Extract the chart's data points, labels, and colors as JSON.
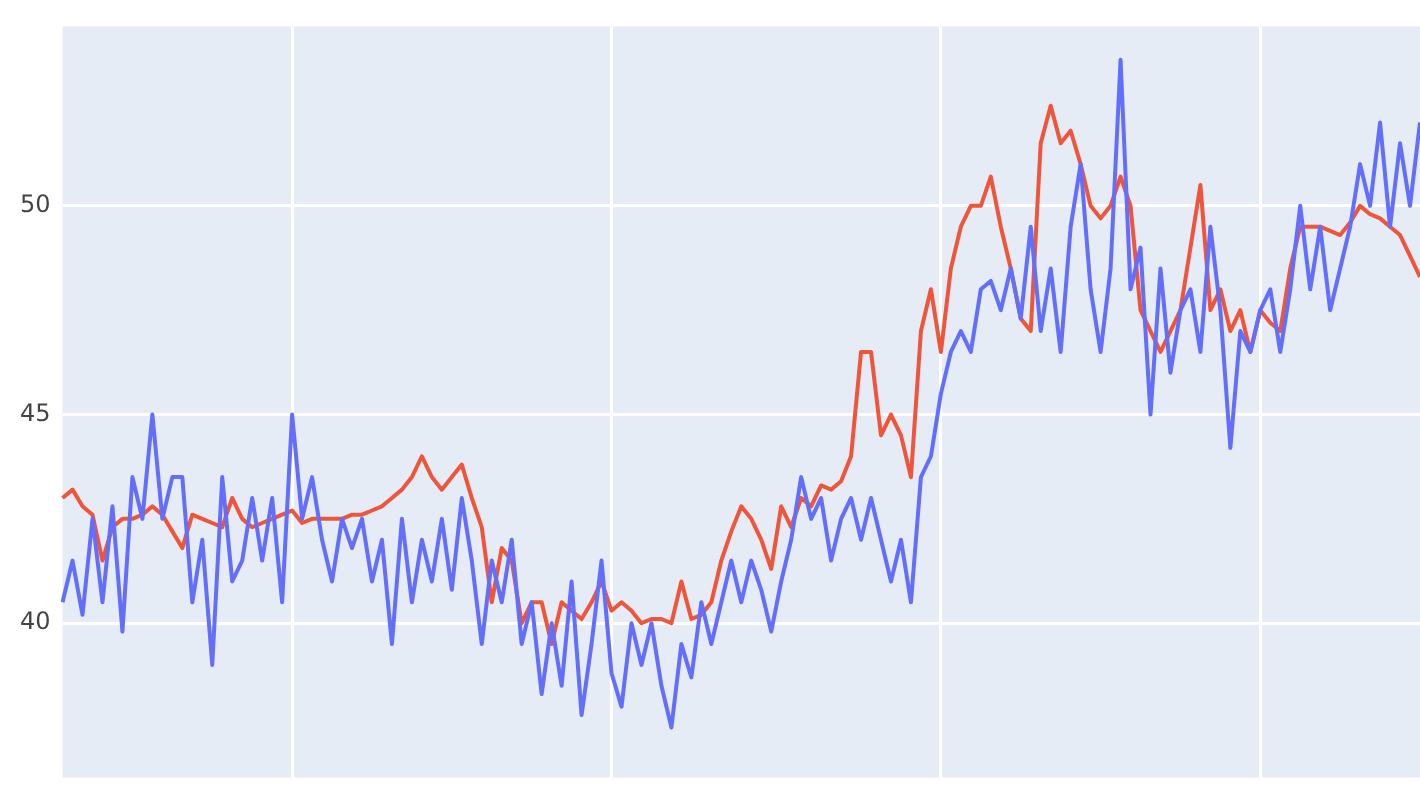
{
  "chart_data": {
    "type": "line",
    "categories": [
      null,
      null,
      null,
      null,
      null,
      null,
      null,
      null,
      null,
      null,
      null,
      null,
      null,
      null,
      null,
      null,
      null,
      null,
      null,
      null,
      null,
      null,
      null,
      null,
      null,
      null,
      null,
      null,
      null,
      null,
      null,
      null,
      null,
      null,
      null,
      null,
      null,
      null,
      null,
      null,
      null,
      null,
      null,
      null,
      null,
      null,
      null,
      null,
      null,
      null,
      null,
      null,
      null,
      null,
      null,
      null,
      null,
      null,
      null,
      null,
      null,
      null,
      null,
      null,
      null,
      null,
      null,
      null,
      null,
      null,
      null,
      null,
      null,
      null,
      null,
      null,
      null,
      null,
      null,
      null,
      null,
      null,
      null,
      null,
      null,
      null,
      null,
      null,
      null,
      null,
      null,
      null,
      null,
      null,
      null,
      null,
      null,
      null,
      null,
      null,
      null,
      null,
      null,
      null,
      null,
      null,
      null,
      null,
      null,
      null,
      null,
      null,
      null,
      null,
      null,
      null,
      null,
      null,
      null,
      null,
      null,
      null,
      null,
      null,
      null,
      null,
      null,
      null,
      null,
      null,
      null,
      null,
      null,
      null,
      null,
      null,
      null
    ],
    "ylim": [
      36.3,
      54.3
    ],
    "yticks": [
      40,
      45,
      50
    ],
    "grid": true,
    "tick_labels": "y",
    "series": [
      {
        "color": "#636efa",
        "values": [
          40.5,
          41.5,
          40.2,
          42.5,
          40.5,
          42.8,
          39.8,
          43.5,
          42.5,
          45,
          42.5,
          43.5,
          43.5,
          40.5,
          42,
          39,
          43.5,
          41,
          41.5,
          43,
          41.5,
          43,
          40.5,
          45,
          42.5,
          43.5,
          42,
          41,
          42.5,
          41.8,
          42.5,
          41,
          42,
          39.5,
          42.5,
          40.5,
          42,
          41,
          42.5,
          40.8,
          43,
          41.5,
          39.5,
          41.5,
          40.5,
          42,
          39.5,
          40.5,
          38.3,
          40,
          38.5,
          41,
          37.8,
          39.5,
          41.5,
          38.8,
          38,
          40,
          39,
          40,
          38.5,
          37.5,
          39.5,
          38.7,
          40.5,
          39.5,
          40.5,
          41.5,
          40.5,
          41.5,
          40.8,
          39.8,
          41,
          42,
          43.5,
          42.5,
          43,
          41.5,
          42.5,
          43,
          42,
          43,
          42,
          41,
          42,
          40.5,
          43.5,
          44,
          45.5,
          46.5,
          47,
          46.5,
          48,
          48.2,
          47.5,
          48.5,
          47.3,
          49.5,
          47,
          48.5,
          46.5,
          49.5,
          51,
          48,
          46.5,
          48.5,
          53.5,
          48,
          49,
          45,
          48.5,
          46,
          47.5,
          48,
          46.5,
          49.5,
          47.5,
          44.2,
          47,
          46.5,
          47.5,
          48,
          46.5,
          48,
          50,
          48,
          49.5,
          47.5,
          48.5,
          49.5,
          51,
          50,
          52,
          49.5,
          51.5,
          50,
          52
        ]
      },
      {
        "color": "#ef553b",
        "values": [
          43,
          43.2,
          42.8,
          42.6,
          41.5,
          42.3,
          42.5,
          42.5,
          42.6,
          42.8,
          42.6,
          42.2,
          41.8,
          42.6,
          42.5,
          42.4,
          42.3,
          43,
          42.5,
          42.3,
          42.4,
          42.5,
          42.6,
          42.7,
          42.4,
          42.5,
          42.5,
          42.5,
          42.5,
          42.6,
          42.6,
          42.7,
          42.8,
          43,
          43.2,
          43.5,
          44,
          43.5,
          43.2,
          43.5,
          43.8,
          43,
          42.3,
          40.5,
          41.8,
          41.5,
          40,
          40.5,
          40.5,
          39.5,
          40.5,
          40.3,
          40.1,
          40.5,
          41,
          40.3,
          40.5,
          40.3,
          40,
          40.1,
          40.1,
          40,
          41,
          40.1,
          40.2,
          40.5,
          41.5,
          42.2,
          42.8,
          42.5,
          42,
          41.3,
          42.8,
          42.3,
          43,
          42.8,
          43.3,
          43.2,
          43.4,
          44,
          46.5,
          46.5,
          44.5,
          45,
          44.5,
          43.5,
          47,
          48,
          46.5,
          48.5,
          49.5,
          50,
          50,
          50.7,
          49.5,
          48.5,
          47.3,
          47,
          51.5,
          52.4,
          51.5,
          51.8,
          51,
          50,
          49.7,
          50,
          50.7,
          50,
          47.5,
          47,
          46.5,
          47,
          47.5,
          49,
          50.5,
          47.5,
          48,
          47,
          47.5,
          46.5,
          47.5,
          47.2,
          47,
          48.5,
          49.5,
          49.5,
          49.5,
          49.4,
          49.3,
          49.6,
          50,
          49.8,
          49.7,
          49.5,
          49.3,
          48.8,
          48.3
        ]
      }
    ]
  }
}
